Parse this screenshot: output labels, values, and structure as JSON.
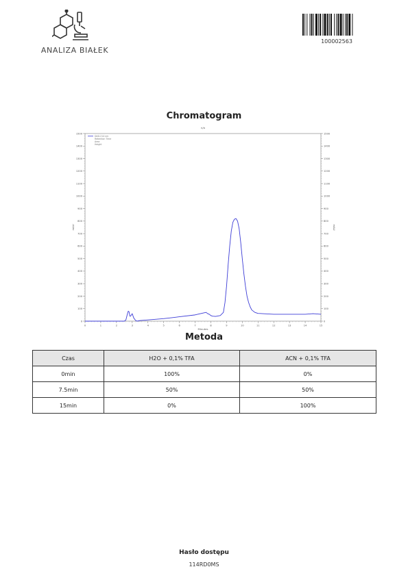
{
  "header": {
    "logo_text": "ANALIZA BIAŁEK",
    "barcode_number": "100002563"
  },
  "chart_title": "Chromatogram",
  "chart_data": {
    "type": "line",
    "top_label": "n/a",
    "xlabel": "Minutes",
    "ylabel": "mAU",
    "y2label": "mAU",
    "xlim": [
      0,
      15
    ],
    "ylim": [
      0,
      1500
    ],
    "x_ticks": [
      "0",
      "1",
      "2",
      "3",
      "4",
      "5",
      "6",
      "7",
      "8",
      "9",
      "10",
      "11",
      "12",
      "13",
      "14",
      "15"
    ],
    "y_ticks": [
      "0",
      "100",
      "200",
      "300",
      "400",
      "500",
      "600",
      "700",
      "800",
      "900",
      "1000",
      "1100",
      "1200",
      "1300",
      "1400",
      "1500"
    ],
    "legend": [
      "DAD-214 nm",
      "Retention Time",
      "Area",
      "Height"
    ],
    "legend_position": "top-left",
    "grid": false,
    "series": [
      {
        "name": "DAD-214 nm",
        "color": "#3b3bd6",
        "x": [
          0,
          2.5,
          2.6,
          2.7,
          2.75,
          2.8,
          2.85,
          2.9,
          3.0,
          3.1,
          3.2,
          3.3,
          3.5,
          4.0,
          5.0,
          6.0,
          7.0,
          7.5,
          7.7,
          7.8,
          7.9,
          8.0,
          8.1,
          8.3,
          8.6,
          8.8,
          8.9,
          9.0,
          9.1,
          9.2,
          9.3,
          9.4,
          9.5,
          9.6,
          9.7,
          9.8,
          9.9,
          10.0,
          10.1,
          10.2,
          10.3,
          10.4,
          10.5,
          10.6,
          10.8,
          11.0,
          11.3,
          12.0,
          13.0,
          14.0,
          14.5,
          15.0
        ],
        "y": [
          0,
          0,
          10,
          60,
          80,
          75,
          40,
          40,
          60,
          25,
          8,
          0,
          5,
          10,
          20,
          35,
          50,
          65,
          70,
          60,
          55,
          45,
          40,
          38,
          45,
          70,
          150,
          280,
          450,
          600,
          720,
          790,
          815,
          820,
          800,
          740,
          630,
          500,
          380,
          280,
          200,
          150,
          115,
          90,
          70,
          62,
          60,
          55,
          55,
          55,
          60,
          55
        ]
      }
    ]
  },
  "method": {
    "title": "Metoda",
    "columns": [
      "Czas",
      "H2O + 0,1% TFA",
      "ACN + 0,1% TFA"
    ],
    "rows": [
      [
        "0min",
        "100%",
        "0%"
      ],
      [
        "7.5min",
        "50%",
        "50%"
      ],
      [
        "15min",
        "0%",
        "100%"
      ]
    ]
  },
  "footer": {
    "label": "Hasło dostępu",
    "value": "114RD0MS"
  }
}
